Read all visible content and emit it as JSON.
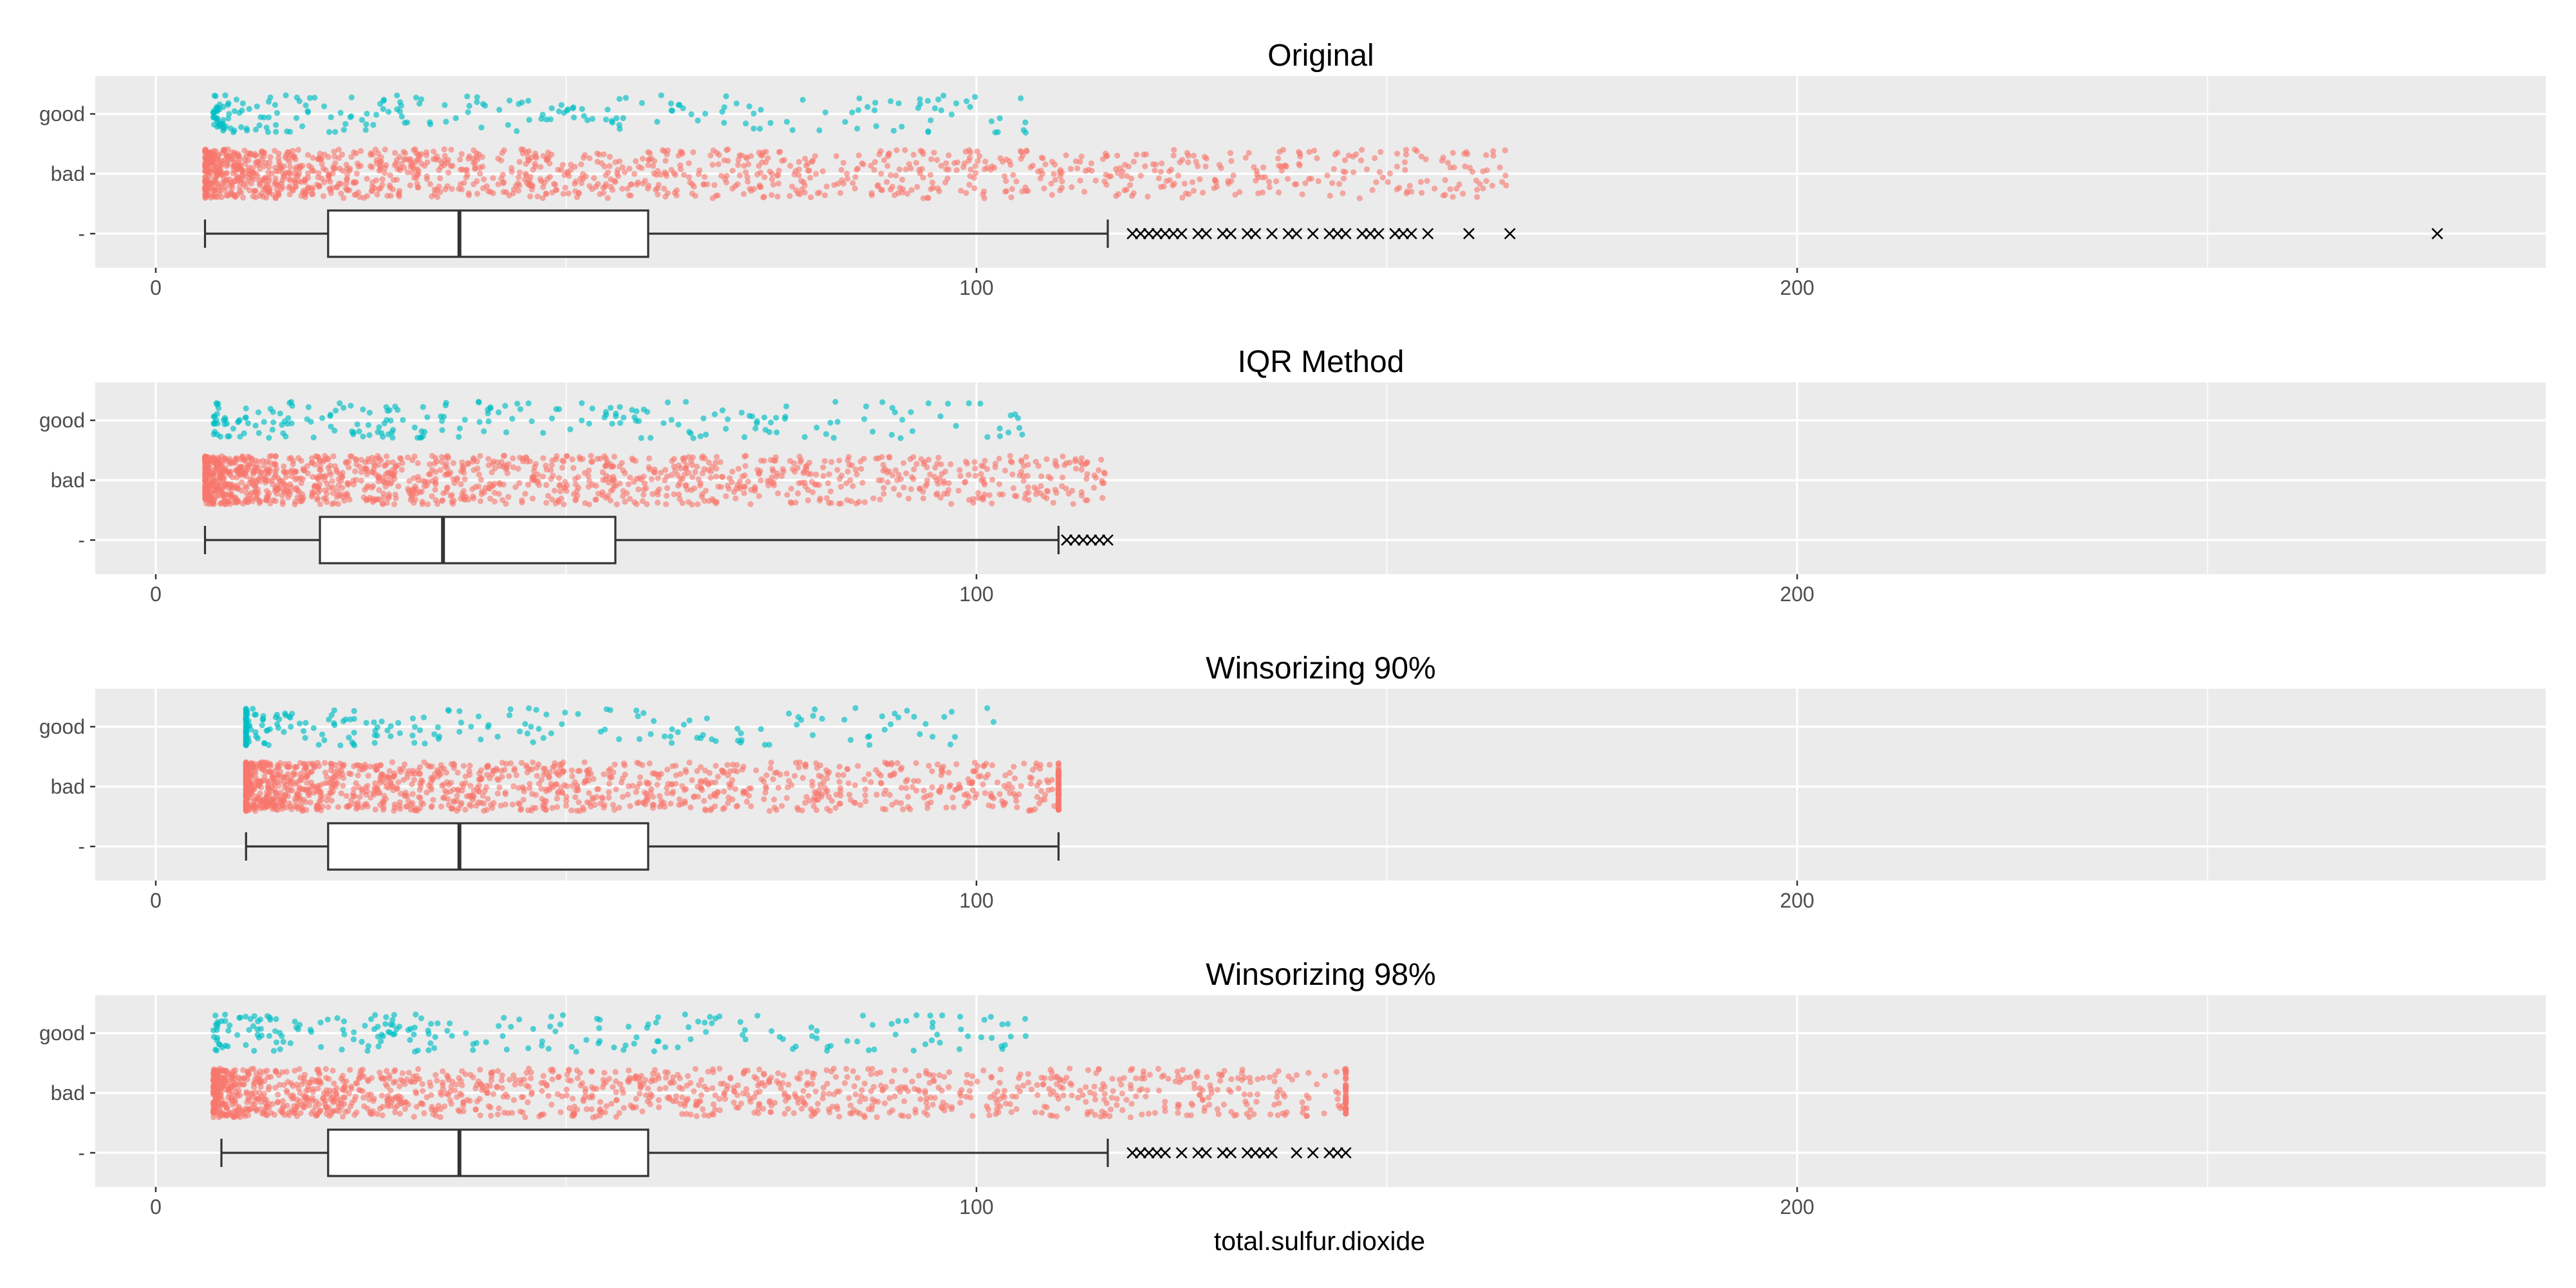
{
  "figure": {
    "xlabel": "total.sulfur.dioxide",
    "colors": {
      "panel_bg": "#EBEBEB",
      "grid": "#FFFFFF",
      "good": "#00BFC4",
      "bad": "#F8766D",
      "box_line": "#333333",
      "outlier": "#000000",
      "tick_text": "#4D4D4D"
    }
  },
  "chart_data": [
    {
      "type": "boxplot+jitter",
      "title": "Original",
      "categories": [
        "good",
        "bad",
        "-"
      ],
      "xlim": [
        -15,
        291
      ],
      "x_ticks": [
        0,
        100,
        200
      ],
      "grid": true,
      "box": {
        "whisker_low": 6,
        "q1": 21,
        "median": 37,
        "q3": 60,
        "whisker_high": 116
      },
      "outliers": [
        119,
        120,
        121,
        122,
        123,
        124,
        125,
        127,
        128,
        130,
        131,
        133,
        134,
        136,
        138,
        139,
        141,
        143,
        144,
        145,
        147,
        148,
        149,
        151,
        152,
        153,
        155,
        160,
        165,
        278
      ],
      "jitter": {
        "good_range": [
          7,
          106
        ],
        "bad_range": [
          6,
          165
        ]
      }
    },
    {
      "type": "boxplot+jitter",
      "title": "IQR Method",
      "categories": [
        "good",
        "bad",
        "-"
      ],
      "xlim": [
        -15,
        291
      ],
      "x_ticks": [
        0,
        100,
        200
      ],
      "grid": true,
      "box": {
        "whisker_low": 6,
        "q1": 20,
        "median": 35,
        "q3": 56,
        "whisker_high": 110
      },
      "outliers": [
        111,
        112,
        113,
        114,
        115,
        116
      ],
      "jitter": {
        "good_range": [
          7,
          106
        ],
        "bad_range": [
          6,
          116
        ]
      }
    },
    {
      "type": "boxplot+jitter",
      "title": "Winsorizing 90%",
      "categories": [
        "good",
        "bad",
        "-"
      ],
      "xlim": [
        -15,
        291
      ],
      "x_ticks": [
        0,
        100,
        200
      ],
      "grid": true,
      "box": {
        "whisker_low": 11,
        "q1": 21,
        "median": 37,
        "q3": 60,
        "whisker_high": 110
      },
      "outliers": [],
      "jitter": {
        "good_range": [
          11,
          106
        ],
        "bad_range": [
          11,
          110
        ]
      }
    },
    {
      "type": "boxplot+jitter",
      "title": "Winsorizing 98%",
      "categories": [
        "good",
        "bad",
        "-"
      ],
      "xlim": [
        -15,
        291
      ],
      "x_ticks": [
        0,
        100,
        200
      ],
      "grid": true,
      "box": {
        "whisker_low": 8,
        "q1": 21,
        "median": 37,
        "q3": 60,
        "whisker_high": 116
      },
      "outliers": [
        119,
        120,
        121,
        122,
        123,
        125,
        127,
        128,
        130,
        131,
        133,
        134,
        135,
        136,
        139,
        141,
        143,
        144,
        145
      ],
      "jitter": {
        "good_range": [
          7,
          106
        ],
        "bad_range": [
          7,
          145
        ]
      }
    }
  ]
}
